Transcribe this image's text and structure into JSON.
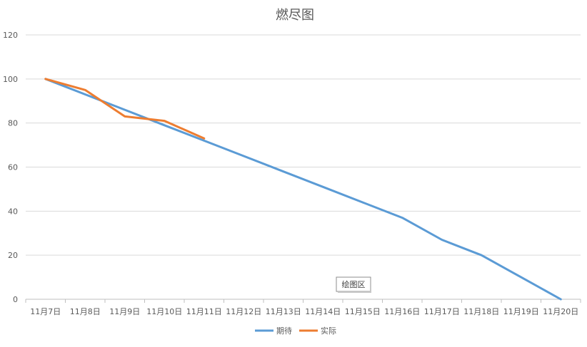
{
  "chart_data": {
    "type": "line",
    "title": "燃尽图",
    "categories": [
      "11月7日",
      "11月8日",
      "11月9日",
      "11月10日",
      "11月11日",
      "11月12日",
      "11月13日",
      "11月14日",
      "11月15日",
      "11月16日",
      "11月17日",
      "11月18日",
      "11月19日",
      "11月20日"
    ],
    "series": [
      {
        "name": "期待",
        "color": "#5b9bd5",
        "values": [
          100,
          93,
          86,
          79,
          72,
          65,
          58,
          51,
          44,
          37,
          27,
          20,
          10,
          0
        ]
      },
      {
        "name": "实际",
        "color": "#ed7d31",
        "values": [
          100,
          95,
          83,
          81,
          73,
          null,
          null,
          null,
          null,
          null,
          null,
          null,
          null,
          null
        ]
      }
    ],
    "ylim": [
      0,
      120
    ],
    "yticks": [
      0,
      20,
      40,
      60,
      80,
      100,
      120
    ],
    "grid": true,
    "legend_position": "bottom",
    "annotation": "绘图区"
  }
}
